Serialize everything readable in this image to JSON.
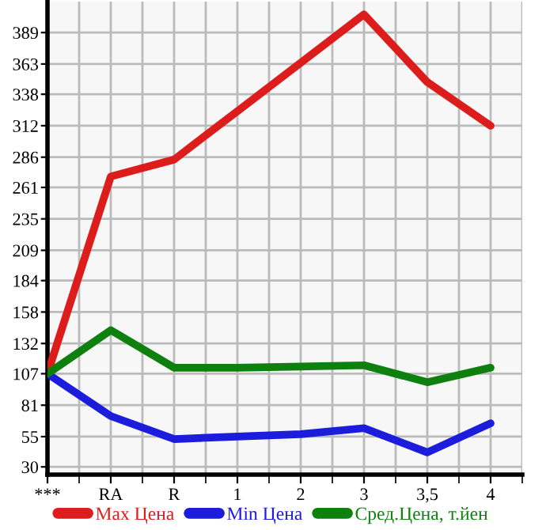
{
  "chart_data": {
    "type": "line",
    "categories": [
      "***",
      "RA",
      "R",
      "1",
      "2",
      "3",
      "3,5",
      "4"
    ],
    "series": [
      {
        "name": "Max Цена",
        "color": "#dd1c1c",
        "values": [
          107,
          270,
          284,
          324,
          364,
          404,
          348,
          312
        ]
      },
      {
        "name": "Min Цена",
        "color": "#1c1cdd",
        "values": [
          107,
          72,
          53,
          55,
          57,
          62,
          42,
          66
        ]
      },
      {
        "name": "Сред.Цена, т.йен",
        "color": "#0e800e",
        "values": [
          107,
          143,
          112,
          112,
          113,
          114,
          100,
          112
        ]
      }
    ],
    "ylim": [
      23.6,
      414.6
    ],
    "yticks": [
      30,
      55,
      81,
      107,
      132,
      158,
      184,
      209,
      235,
      261,
      286,
      312,
      338,
      363,
      389
    ],
    "grid": true,
    "legend": "bottom",
    "marker": "none",
    "line_style": "solid"
  }
}
